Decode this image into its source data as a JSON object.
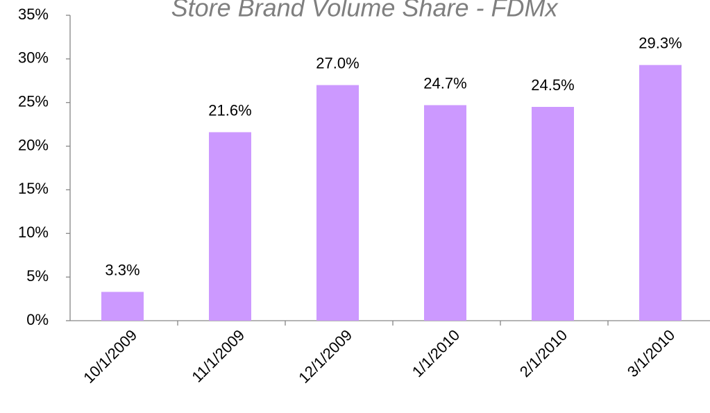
{
  "chart_data": {
    "type": "bar",
    "title": "Store Brand Volume Share - FDMx",
    "categories": [
      "10/1/2009",
      "11/1/2009",
      "12/1/2009",
      "1/1/2010",
      "2/1/2010",
      "3/1/2010"
    ],
    "values": [
      3.3,
      21.6,
      27.0,
      24.7,
      24.5,
      29.3
    ],
    "value_labels": [
      "3.3%",
      "21.6%",
      "27.0%",
      "24.7%",
      "24.5%",
      "29.3%"
    ],
    "color": "#cc99ff",
    "ylim": [
      0,
      35
    ],
    "yticks": [
      {
        "value": 0,
        "label": "0%"
      },
      {
        "value": 5,
        "label": "5%"
      },
      {
        "value": 10,
        "label": "10%"
      },
      {
        "value": 15,
        "label": "15%"
      },
      {
        "value": 20,
        "label": "20%"
      },
      {
        "value": 25,
        "label": "25%"
      },
      {
        "value": 30,
        "label": "30%"
      },
      {
        "value": 35,
        "label": "35%"
      }
    ],
    "grid": false
  }
}
